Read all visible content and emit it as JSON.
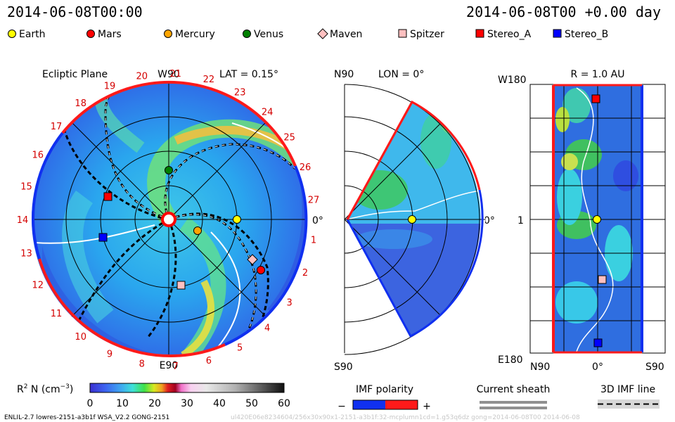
{
  "header": {
    "left_time": "2014-06-08T00:00",
    "right_time": "2014-06-08T00 +0.00 day"
  },
  "legend": [
    {
      "label": "Earth",
      "shape": "circle",
      "color": "#ffff00"
    },
    {
      "label": "Mars",
      "shape": "circle",
      "color": "#ff0000"
    },
    {
      "label": "Mercury",
      "shape": "circle",
      "color": "#ffa500"
    },
    {
      "label": "Venus",
      "shape": "circle",
      "color": "#008000"
    },
    {
      "label": "Maven",
      "shape": "diamond",
      "color": "#ffc0c0"
    },
    {
      "label": "Spitzer",
      "shape": "square",
      "color": "#ffc0c0"
    },
    {
      "label": "Stereo_A",
      "shape": "square",
      "color": "#ff0000"
    },
    {
      "label": "Stereo_B",
      "shape": "square",
      "color": "#0000ff"
    }
  ],
  "panels": {
    "ecliptic": {
      "title": "Ecliptic Plane",
      "top_label": "W90",
      "bottom_label": "E90",
      "right_label": "0°",
      "lat_label": "LAT = 0.15°",
      "carrington_labels": [
        "1",
        "2",
        "3",
        "4",
        "5",
        "6",
        "7",
        "8",
        "9",
        "10",
        "11",
        "12",
        "13",
        "14",
        "15",
        "16",
        "17",
        "18",
        "19",
        "20",
        "21",
        "22",
        "23",
        "24",
        "25",
        "26",
        "27"
      ]
    },
    "meridional": {
      "top_left": "N90",
      "bottom_left": "S90",
      "lon_label": "LON = 0°",
      "right_label": "0°"
    },
    "radial": {
      "title": "R = 1.0 AU",
      "top_left": "W180",
      "bottom_left": "E180",
      "mid_left": "1",
      "bottom_labels": [
        "N90",
        "0°",
        "S90"
      ]
    }
  },
  "colorbar": {
    "title_main": "R",
    "title_sup": "2",
    "title_rest": " N (cm",
    "title_exp": "−3",
    "title_end": ")",
    "ticks": [
      "0",
      "10",
      "20",
      "30",
      "40",
      "50",
      "60"
    ]
  },
  "imf_polarity": {
    "title": "IMF polarity",
    "minus": "−",
    "plus": "+"
  },
  "current_sheath": {
    "title": "Current sheath"
  },
  "imf_line": {
    "title": "3D IMF line"
  },
  "footer": {
    "model": "ENLIL-2.7 lowres-2151-a3b1f WSA_V2.2 GONG-2151",
    "faint": "ul420E06e8234604/256x30x90x1-2151-a3b1f:32-mcplumn1cd=1.g53q6dz gong=2014-06-08T00    2014-06-08"
  },
  "chart_data": {
    "type": "heatmap",
    "quantity": "R² N (cm⁻³)",
    "colorbar_range": [
      0,
      60
    ],
    "colorbar_ticks": [
      0,
      10,
      20,
      30,
      40,
      50,
      60
    ],
    "ecliptic_lat_deg": 0.15,
    "meridional_lon_deg": 0,
    "radial_distance_au": 1.0,
    "time": "2014-06-08T00:00",
    "offset_days": 0.0,
    "carrington_longitude_labels": [
      1,
      2,
      3,
      4,
      5,
      6,
      7,
      8,
      9,
      10,
      11,
      12,
      13,
      14,
      15,
      16,
      17,
      18,
      19,
      20,
      21,
      22,
      23,
      24,
      25,
      26,
      27
    ],
    "objects": [
      "Earth",
      "Mars",
      "Mercury",
      "Venus",
      "Maven",
      "Spitzer",
      "Stereo_A",
      "Stereo_B"
    ]
  }
}
